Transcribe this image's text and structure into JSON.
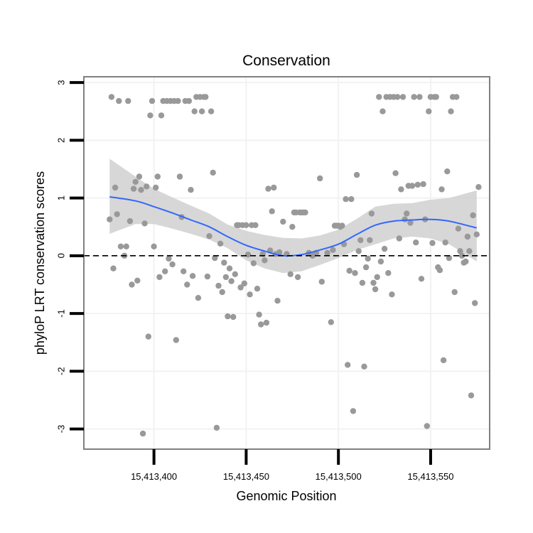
{
  "chart_data": {
    "type": "scatter",
    "title": "Conservation",
    "xlabel": "Genomic Position",
    "ylabel": "phyloP LRT conservation scores",
    "xlim": [
      15413362,
      15413582
    ],
    "ylim": [
      -3.35,
      3.1
    ],
    "x_ticks": [
      15413400,
      15413450,
      15413500,
      15413550
    ],
    "x_tick_labels": [
      "15,413,400",
      "15,413,450",
      "15,413,500",
      "15,413,550"
    ],
    "y_ticks": [
      -3,
      -2,
      -1,
      0,
      1,
      2,
      3
    ],
    "y_tick_labels": [
      "-3",
      "-2",
      "-1",
      "0",
      "1",
      "2",
      "3"
    ],
    "reference_line": {
      "y": 0,
      "style": "dashed"
    },
    "grid": true,
    "colors": {
      "points": "#999999",
      "smooth": "#3366FF",
      "band": "#D0D0D0",
      "frame": "#808080",
      "grid": "#F2F2F2",
      "axis": "#000000"
    },
    "smooth": {
      "label": "loess",
      "x": [
        15413376,
        15413390,
        15413400,
        15413410,
        15413420,
        15413430,
        15413440,
        15413450,
        15413460,
        15413470,
        15413480,
        15413490,
        15413500,
        15413510,
        15413520,
        15413530,
        15413540,
        15413550,
        15413560,
        15413575
      ],
      "y": [
        1.02,
        0.95,
        0.85,
        0.74,
        0.62,
        0.5,
        0.33,
        0.18,
        0.08,
        0.0,
        0.02,
        0.1,
        0.2,
        0.37,
        0.53,
        0.6,
        0.62,
        0.63,
        0.6,
        0.48
      ],
      "lower": [
        0.38,
        0.55,
        0.55,
        0.47,
        0.38,
        0.28,
        0.13,
        -0.08,
        -0.22,
        -0.3,
        -0.27,
        -0.16,
        -0.04,
        0.1,
        0.2,
        0.3,
        0.33,
        0.3,
        0.2,
        -0.1
      ],
      "upper": [
        1.68,
        1.37,
        1.16,
        1.01,
        0.87,
        0.73,
        0.54,
        0.43,
        0.36,
        0.31,
        0.3,
        0.35,
        0.45,
        0.64,
        0.85,
        0.9,
        0.91,
        0.97,
        1.0,
        1.13
      ]
    },
    "points": [
      [
        15413376,
        0.63
      ],
      [
        15413377,
        2.75
      ],
      [
        15413378,
        -0.22
      ],
      [
        15413379,
        1.18
      ],
      [
        15413380,
        0.72
      ],
      [
        15413381,
        2.68
      ],
      [
        15413382,
        0.16
      ],
      [
        15413384,
        0.0
      ],
      [
        15413385,
        0.16
      ],
      [
        15413386,
        2.68
      ],
      [
        15413387,
        0.6
      ],
      [
        15413388,
        -0.5
      ],
      [
        15413389,
        1.16
      ],
      [
        15413390,
        1.28
      ],
      [
        15413391,
        -0.43
      ],
      [
        15413392,
        1.37
      ],
      [
        15413393,
        1.14
      ],
      [
        15413394,
        -3.08
      ],
      [
        15413395,
        0.56
      ],
      [
        15413396,
        1.2
      ],
      [
        15413397,
        -1.4
      ],
      [
        15413398,
        2.43
      ],
      [
        15413399,
        2.68
      ],
      [
        15413400,
        0.16
      ],
      [
        15413401,
        1.18
      ],
      [
        15413402,
        1.37
      ],
      [
        15413403,
        -0.37
      ],
      [
        15413404,
        2.43
      ],
      [
        15413405,
        2.68
      ],
      [
        15413406,
        -0.27
      ],
      [
        15413407,
        2.68
      ],
      [
        15413408,
        -0.05
      ],
      [
        15413409,
        2.68
      ],
      [
        15413410,
        -0.15
      ],
      [
        15413411,
        2.68
      ],
      [
        15413412,
        -1.46
      ],
      [
        15413413,
        2.68
      ],
      [
        15413414,
        1.37
      ],
      [
        15413415,
        0.67
      ],
      [
        15413416,
        -0.27
      ],
      [
        15413417,
        2.68
      ],
      [
        15413418,
        -0.5
      ],
      [
        15413419,
        2.68
      ],
      [
        15413420,
        1.14
      ],
      [
        15413421,
        -0.35
      ],
      [
        15413422,
        2.5
      ],
      [
        15413423,
        2.75
      ],
      [
        15413424,
        -0.73
      ],
      [
        15413425,
        2.75
      ],
      [
        15413426,
        2.5
      ],
      [
        15413427,
        2.75
      ],
      [
        15413428,
        2.75
      ],
      [
        15413429,
        -0.36
      ],
      [
        15413430,
        0.34
      ],
      [
        15413431,
        2.5
      ],
      [
        15413432,
        1.44
      ],
      [
        15413433,
        -0.04
      ],
      [
        15413434,
        -2.98
      ],
      [
        15413435,
        -0.52
      ],
      [
        15413436,
        0.21
      ],
      [
        15413437,
        -0.63
      ],
      [
        15413438,
        -0.12
      ],
      [
        15413439,
        -0.37
      ],
      [
        15413440,
        -1.05
      ],
      [
        15413441,
        -0.22
      ],
      [
        15413442,
        -0.44
      ],
      [
        15413443,
        -1.06
      ],
      [
        15413444,
        -0.32
      ],
      [
        15413445,
        0.53
      ],
      [
        15413446,
        0.53
      ],
      [
        15413447,
        -0.55
      ],
      [
        15413448,
        0.53
      ],
      [
        15413449,
        -0.48
      ],
      [
        15413450,
        0.53
      ],
      [
        15413451,
        0.02
      ],
      [
        15413452,
        -0.67
      ],
      [
        15413453,
        0.53
      ],
      [
        15413454,
        -0.13
      ],
      [
        15413455,
        0.53
      ],
      [
        15413456,
        -0.57
      ],
      [
        15413457,
        -1.02
      ],
      [
        15413458,
        -1.19
      ],
      [
        15413459,
        0.03
      ],
      [
        15413460,
        -0.08
      ],
      [
        15413461,
        -1.16
      ],
      [
        15413462,
        1.16
      ],
      [
        15413463,
        0.09
      ],
      [
        15413464,
        0.77
      ],
      [
        15413465,
        1.18
      ],
      [
        15413466,
        0.03
      ],
      [
        15413467,
        -0.78
      ],
      [
        15413468,
        0.06
      ],
      [
        15413470,
        0.59
      ],
      [
        15413472,
        0.03
      ],
      [
        15413474,
        -0.32
      ],
      [
        15413475,
        0.5
      ],
      [
        15413476,
        0.75
      ],
      [
        15413477,
        0.75
      ],
      [
        15413478,
        -0.37
      ],
      [
        15413479,
        0.75
      ],
      [
        15413480,
        0.75
      ],
      [
        15413481,
        0.75
      ],
      [
        15413482,
        0.75
      ],
      [
        15413484,
        0.05
      ],
      [
        15413486,
        0.0
      ],
      [
        15413488,
        0.05
      ],
      [
        15413490,
        1.34
      ],
      [
        15413491,
        -0.45
      ],
      [
        15413494,
        0.05
      ],
      [
        15413496,
        -1.15
      ],
      [
        15413497,
        0.1
      ],
      [
        15413498,
        0.52
      ],
      [
        15413499,
        0.52
      ],
      [
        15413500,
        0.52
      ],
      [
        15413501,
        0.5
      ],
      [
        15413502,
        0.52
      ],
      [
        15413503,
        0.2
      ],
      [
        15413504,
        0.98
      ],
      [
        15413505,
        -1.89
      ],
      [
        15413506,
        -0.26
      ],
      [
        15413507,
        0.98
      ],
      [
        15413508,
        -2.69
      ],
      [
        15413509,
        -0.3
      ],
      [
        15413510,
        1.4
      ],
      [
        15413511,
        0.08
      ],
      [
        15413512,
        0.27
      ],
      [
        15413513,
        -0.47
      ],
      [
        15413514,
        -1.92
      ],
      [
        15413515,
        -0.2
      ],
      [
        15413516,
        -0.05
      ],
      [
        15413517,
        0.27
      ],
      [
        15413518,
        0.73
      ],
      [
        15413519,
        -0.47
      ],
      [
        15413520,
        -0.58
      ],
      [
        15413521,
        -0.37
      ],
      [
        15413522,
        2.75
      ],
      [
        15413523,
        -0.1
      ],
      [
        15413524,
        2.5
      ],
      [
        15413525,
        0.12
      ],
      [
        15413526,
        2.75
      ],
      [
        15413527,
        -0.3
      ],
      [
        15413528,
        2.75
      ],
      [
        15413529,
        -0.67
      ],
      [
        15413530,
        2.75
      ],
      [
        15413531,
        1.43
      ],
      [
        15413532,
        2.75
      ],
      [
        15413533,
        0.3
      ],
      [
        15413534,
        1.15
      ],
      [
        15413535,
        2.75
      ],
      [
        15413536,
        0.63
      ],
      [
        15413537,
        0.73
      ],
      [
        15413538,
        1.21
      ],
      [
        15413539,
        0.57
      ],
      [
        15413540,
        1.21
      ],
      [
        15413541,
        2.75
      ],
      [
        15413542,
        0.23
      ],
      [
        15413543,
        1.23
      ],
      [
        15413544,
        2.75
      ],
      [
        15413545,
        -0.4
      ],
      [
        15413546,
        1.24
      ],
      [
        15413547,
        0.63
      ],
      [
        15413548,
        -2.95
      ],
      [
        15413549,
        2.5
      ],
      [
        15413550,
        2.75
      ],
      [
        15413551,
        0.22
      ],
      [
        15413552,
        2.75
      ],
      [
        15413553,
        2.75
      ],
      [
        15413554,
        -0.2
      ],
      [
        15413555,
        -0.25
      ],
      [
        15413556,
        1.15
      ],
      [
        15413557,
        -1.81
      ],
      [
        15413558,
        0.23
      ],
      [
        15413559,
        1.46
      ],
      [
        15413560,
        -0.04
      ],
      [
        15413561,
        2.5
      ],
      [
        15413562,
        2.75
      ],
      [
        15413563,
        -0.63
      ],
      [
        15413564,
        2.75
      ],
      [
        15413565,
        0.47
      ],
      [
        15413566,
        0.08
      ],
      [
        15413567,
        0.0
      ],
      [
        15413568,
        -0.12
      ],
      [
        15413569,
        -0.1
      ],
      [
        15413570,
        0.33
      ],
      [
        15413571,
        0.08
      ],
      [
        15413572,
        -2.42
      ],
      [
        15413573,
        0.7
      ],
      [
        15413574,
        -0.82
      ],
      [
        15413575,
        0.37
      ],
      [
        15413576,
        1.19
      ]
    ]
  }
}
